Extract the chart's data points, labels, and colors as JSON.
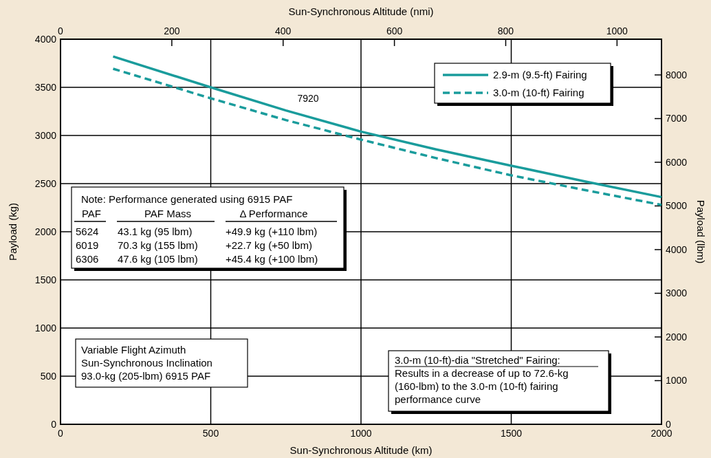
{
  "chart_data": {
    "type": "line",
    "xlabel": "Sun-Synchronous Altitude (km)",
    "ylabel": "Payload (kg)",
    "y2label": "Payload (lbm)",
    "x2label": "Sun-Synchronous Altitude (nmi)",
    "xlim": [
      0,
      2000
    ],
    "xticks": [
      0,
      500,
      1000,
      1500,
      2000
    ],
    "ylim": [
      0,
      4000
    ],
    "yticks": [
      0,
      500,
      1000,
      1500,
      2000,
      2500,
      3000,
      3500,
      4000
    ],
    "y2lim": [
      0,
      8818
    ],
    "y2ticks": [
      0,
      1000,
      2000,
      3000,
      4000,
      5000,
      6000,
      7000,
      8000
    ],
    "x2lim": [
      0,
      1079.9
    ],
    "x2ticks": [
      0,
      200,
      400,
      600,
      800,
      1000
    ],
    "grid": true,
    "legend": "top right",
    "marker": "none",
    "series": [
      {
        "name": "2.9-m (9.5-ft) Fairing",
        "color": "#1a9c9c",
        "line_style": "solid",
        "x": [
          175,
          500,
          750,
          1000,
          1250,
          1500,
          1750,
          2000
        ],
        "values": [
          3820,
          3500,
          3260,
          3040,
          2855,
          2686,
          2520,
          2360
        ]
      },
      {
        "name": "3.0-m (10-ft) Fairing",
        "color": "#1a9c9c",
        "line_style": "dashed",
        "x": [
          175,
          500,
          750,
          1000,
          1250,
          1500,
          1750,
          2000
        ],
        "values": [
          3693,
          3386,
          3160,
          2957,
          2765,
          2586,
          2430,
          2279
        ]
      }
    ],
    "annotations": [
      "7920",
      "Note: Performance generated using 6915 PAF",
      "PAF",
      "PAF Mass",
      "Δ Performance",
      "5624",
      "43.1 kg (95 lbm)",
      "+49.9 kg (+110 lbm)",
      "6019",
      "70.3 kg (155 lbm)",
      "+22.7 kg (+50 lbm)",
      "6306",
      "47.6 kg (105 lbm)",
      "+45.4 kg (+100 lbm)",
      "Variable Flight Azimuth",
      "Sun-Synchronous Inclination",
      "93.0-kg (205-lbm) 6915 PAF",
      "3.0-m (10-ft)-dia \"Stretched\" Fairing:",
      "Results in a decrease of up to 72.6-kg",
      "(160-lbm) to the 3.0-m (10-ft) fairing",
      "performance curve"
    ]
  }
}
